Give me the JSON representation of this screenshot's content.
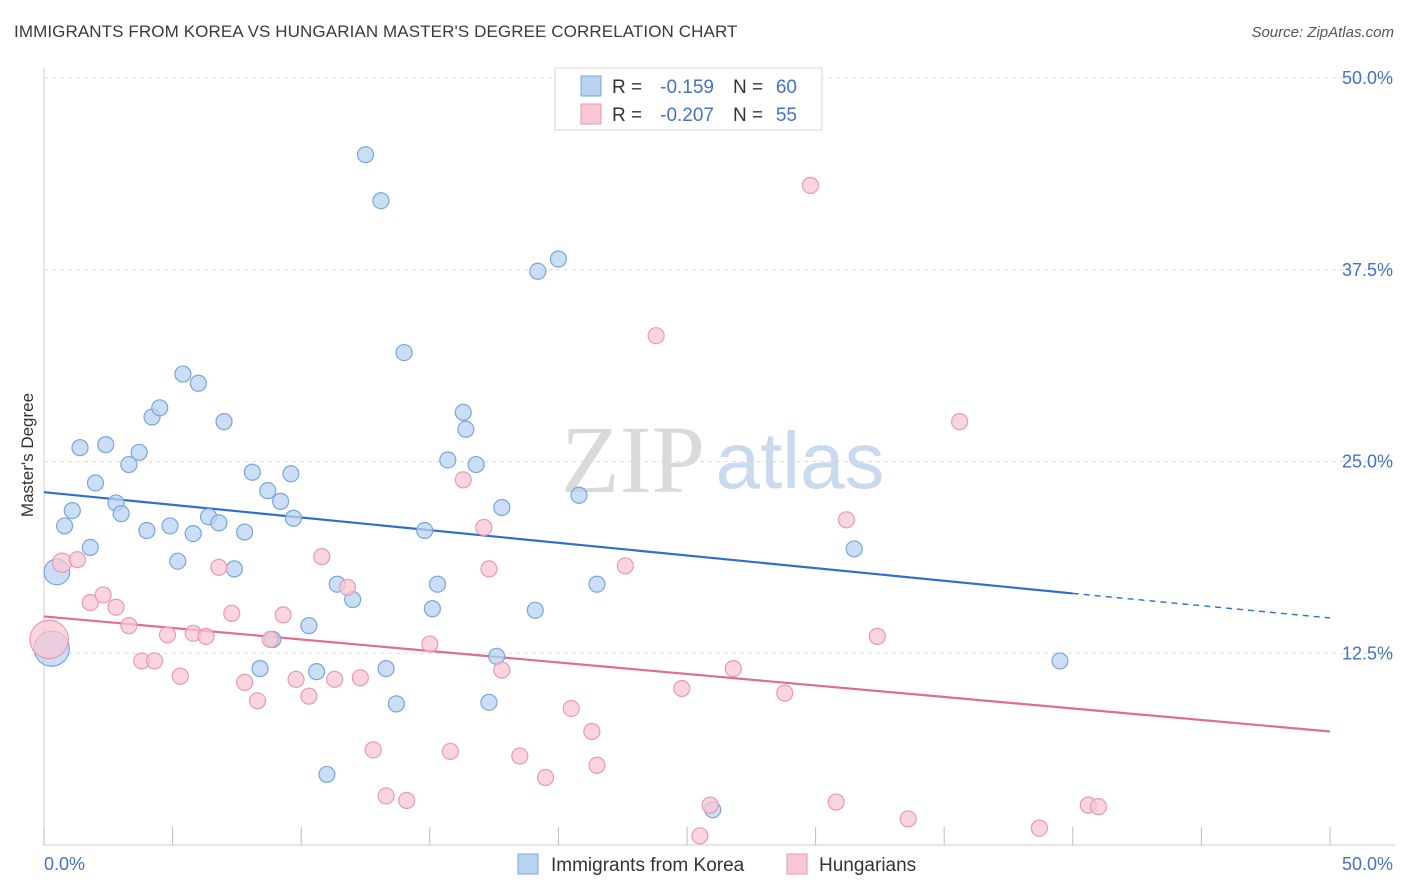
{
  "title": "IMMIGRANTS FROM KOREA VS HUNGARIAN MASTER'S DEGREE CORRELATION CHART",
  "source": "Source: ZipAtlas.com",
  "watermark": {
    "zip": "ZIP",
    "atlas": "atlas"
  },
  "colors": {
    "blue_fill": "#b8d3f2",
    "blue_stroke": "#7aa5dc",
    "blue_line": "#2f6fcc",
    "pink_fill": "#f8c6d4",
    "pink_stroke": "#e89ab2",
    "pink_line": "#e06c94",
    "tick": "#4472c4",
    "grid": "#dddddd"
  },
  "legend": {
    "r_label": "R =",
    "n_label": "N =",
    "rows": [
      {
        "series": "blue",
        "r": "-0.159",
        "n": "60"
      },
      {
        "series": "pink",
        "r": "-0.207",
        "n": "55"
      }
    ]
  },
  "bottom_legend": [
    "Immigrants from Korea",
    "Hungarians"
  ],
  "chart_data": {
    "type": "scatter",
    "xlabel": "",
    "ylabel": "Master's Degree",
    "xlim": [
      0,
      50
    ],
    "ylim": [
      0,
      50
    ],
    "x_tick_labels": [
      "0.0%",
      "50.0%"
    ],
    "y_ticks": [
      12.5,
      25.0,
      37.5,
      50.0
    ],
    "y_tick_labels": [
      "12.5%",
      "25.0%",
      "37.5%",
      "50.0%"
    ],
    "grid": true,
    "legend_position": "top-center",
    "series": [
      {
        "name": "Immigrants from Korea",
        "color": "#b8d3f2",
        "trend": {
          "x0": 0,
          "y0": 23.0,
          "x1": 40,
          "y1": 16.4,
          "dashed_to": 50,
          "dashed_y": 14.8
        },
        "points": [
          [
            0.5,
            17.8,
            1.6
          ],
          [
            0.3,
            12.8,
            2.2
          ],
          [
            0.8,
            20.8,
            1
          ],
          [
            1.1,
            21.8,
            1
          ],
          [
            1.4,
            25.9,
            1
          ],
          [
            1.8,
            19.4,
            1
          ],
          [
            2.0,
            23.6,
            1
          ],
          [
            2.4,
            26.1,
            1
          ],
          [
            2.8,
            22.3,
            1
          ],
          [
            3.0,
            21.6,
            1
          ],
          [
            3.3,
            24.8,
            1
          ],
          [
            3.7,
            25.6,
            1
          ],
          [
            4.0,
            20.5,
            1
          ],
          [
            4.2,
            27.9,
            1
          ],
          [
            4.5,
            28.5,
            1
          ],
          [
            4.9,
            20.8,
            1
          ],
          [
            5.2,
            18.5,
            1
          ],
          [
            5.4,
            30.7,
            1
          ],
          [
            5.8,
            20.3,
            1
          ],
          [
            6.0,
            30.1,
            1
          ],
          [
            6.4,
            21.4,
            1
          ],
          [
            6.8,
            21.0,
            1
          ],
          [
            7.0,
            27.6,
            1
          ],
          [
            7.4,
            18.0,
            1
          ],
          [
            7.8,
            20.4,
            1
          ],
          [
            8.1,
            24.3,
            1
          ],
          [
            8.4,
            11.5,
            1
          ],
          [
            8.7,
            23.1,
            1
          ],
          [
            8.9,
            13.4,
            1
          ],
          [
            9.2,
            22.4,
            1
          ],
          [
            9.6,
            24.2,
            1
          ],
          [
            9.7,
            21.3,
            1
          ],
          [
            10.3,
            14.3,
            1
          ],
          [
            10.6,
            11.3,
            1
          ],
          [
            11.0,
            4.6,
            1
          ],
          [
            11.4,
            17.0,
            1
          ],
          [
            12.0,
            16.0,
            1
          ],
          [
            12.5,
            45.0,
            1
          ],
          [
            13.1,
            42.0,
            1
          ],
          [
            13.3,
            11.5,
            1
          ],
          [
            13.7,
            9.2,
            1
          ],
          [
            14.0,
            32.1,
            1
          ],
          [
            14.8,
            20.5,
            1
          ],
          [
            15.1,
            15.4,
            1
          ],
          [
            15.3,
            17.0,
            1
          ],
          [
            15.7,
            25.1,
            1
          ],
          [
            16.3,
            28.2,
            1
          ],
          [
            16.4,
            27.1,
            1
          ],
          [
            16.8,
            24.8,
            1
          ],
          [
            17.3,
            9.3,
            1
          ],
          [
            17.6,
            12.3,
            1
          ],
          [
            17.8,
            22.0,
            1
          ],
          [
            19.2,
            37.4,
            1
          ],
          [
            19.1,
            15.3,
            1
          ],
          [
            20.0,
            38.2,
            1
          ],
          [
            20.8,
            22.8,
            1
          ],
          [
            21.5,
            17.0,
            1
          ],
          [
            26.0,
            2.3,
            1
          ],
          [
            31.5,
            19.3,
            1
          ],
          [
            39.5,
            12.0,
            1
          ]
        ]
      },
      {
        "name": "Hungarians",
        "color": "#f8c6d4",
        "trend": {
          "x0": 0,
          "y0": 14.9,
          "x1": 50,
          "y1": 7.4
        },
        "points": [
          [
            0.2,
            13.4,
            2.4
          ],
          [
            0.7,
            18.4,
            1.2
          ],
          [
            1.3,
            18.6,
            1
          ],
          [
            1.8,
            15.8,
            1
          ],
          [
            2.3,
            16.3,
            1
          ],
          [
            2.8,
            15.5,
            1
          ],
          [
            3.3,
            14.3,
            1
          ],
          [
            3.8,
            12.0,
            1
          ],
          [
            4.3,
            12.0,
            1
          ],
          [
            4.8,
            13.7,
            1
          ],
          [
            5.3,
            11.0,
            1
          ],
          [
            5.8,
            13.8,
            1
          ],
          [
            6.3,
            13.6,
            1
          ],
          [
            6.8,
            18.1,
            1
          ],
          [
            7.3,
            15.1,
            1
          ],
          [
            7.8,
            10.6,
            1
          ],
          [
            8.3,
            9.4,
            1
          ],
          [
            8.8,
            13.4,
            1
          ],
          [
            9.3,
            15.0,
            1
          ],
          [
            9.8,
            10.8,
            1
          ],
          [
            10.3,
            9.7,
            1
          ],
          [
            10.8,
            18.8,
            1
          ],
          [
            11.3,
            10.8,
            1
          ],
          [
            11.8,
            16.8,
            1
          ],
          [
            12.3,
            10.9,
            1
          ],
          [
            12.8,
            6.2,
            1
          ],
          [
            13.3,
            3.2,
            1
          ],
          [
            14.1,
            2.9,
            1
          ],
          [
            15.0,
            13.1,
            1
          ],
          [
            15.8,
            6.1,
            1
          ],
          [
            16.3,
            23.8,
            1
          ],
          [
            17.1,
            20.7,
            1
          ],
          [
            17.3,
            18.0,
            1
          ],
          [
            17.8,
            11.4,
            1
          ],
          [
            18.5,
            5.8,
            1
          ],
          [
            19.5,
            4.4,
            1
          ],
          [
            20.5,
            8.9,
            1
          ],
          [
            21.3,
            7.4,
            1
          ],
          [
            21.5,
            5.2,
            1
          ],
          [
            22.6,
            18.2,
            1
          ],
          [
            23.8,
            33.2,
            1
          ],
          [
            25.5,
            0.6,
            1
          ],
          [
            25.9,
            2.6,
            1
          ],
          [
            24.8,
            10.2,
            1
          ],
          [
            26.8,
            11.5,
            1
          ],
          [
            28.8,
            9.9,
            1
          ],
          [
            29.8,
            43.0,
            1
          ],
          [
            30.8,
            2.8,
            1
          ],
          [
            31.2,
            21.2,
            1
          ],
          [
            32.4,
            13.6,
            1
          ],
          [
            33.6,
            1.7,
            1
          ],
          [
            35.6,
            27.6,
            1
          ],
          [
            38.7,
            1.1,
            1
          ],
          [
            40.6,
            2.6,
            1
          ],
          [
            41.0,
            2.5,
            1
          ]
        ]
      }
    ]
  }
}
